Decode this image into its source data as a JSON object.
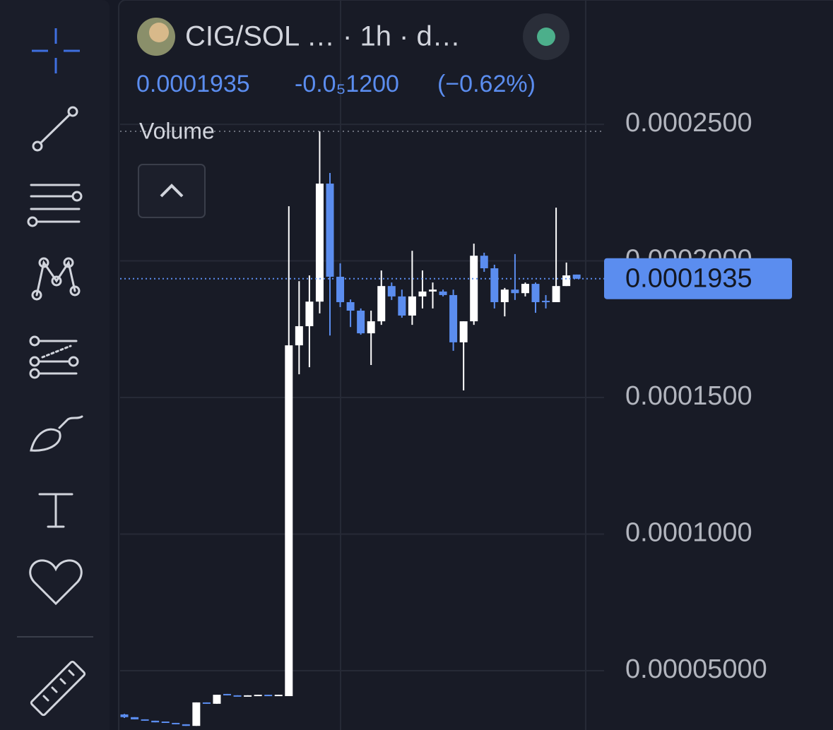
{
  "chart_data": {
    "type": "candlestick",
    "title": "CIG/SOL … · 1h · d…",
    "last_price": 0.0001935,
    "change": {
      "value": -1.2e-06,
      "label": "-0.0₅1200"
    },
    "change_percent": {
      "value": -0.62,
      "label": "(−0.62%)"
    },
    "indicator": "Volume",
    "up_color": "#ffffff",
    "down_color": "#5b8def",
    "open": [
      3.4e-05,
      3.3e-05,
      3.22e-05,
      3.17e-05,
      3.14e-05,
      3.09e-05,
      3.04e-05,
      2.98e-05,
      3.84e-05,
      3.79e-05,
      4.15e-05,
      4.1e-05,
      4.07e-05,
      4.1e-05,
      4.12e-05,
      4.07e-05,
      4.07e-05,
      0.0001691,
      0.0001761,
      0.0001851,
      0.0002283,
      0.0001942,
      0.0001849,
      0.0001818,
      0.0001735,
      0.0001779,
      0.0001908,
      0.000187,
      0.00018,
      0.000187,
      0.0001888,
      0.0001888,
      0.0001875,
      0.0001702,
      0.0001779,
      0.0002019,
      0.0001973,
      0.0001849,
      0.0001895,
      0.0001882,
      0.0001916,
      0.0001854,
      0.0001849,
      0.0001908,
      0.000195
    ],
    "high": [
      3.42e-05,
      3.3e-05,
      3.22e-05,
      3.17e-05,
      3.14e-05,
      3.09e-05,
      3.04e-05,
      3.84e-05,
      3.84e-05,
      4.12e-05,
      4.15e-05,
      4.1e-05,
      4.1e-05,
      4.12e-05,
      4.12e-05,
      4.12e-05,
      0.00022,
      0.0001926,
      0.0001947,
      0.0002474,
      0.0002322,
      0.0001991,
      0.0001859,
      0.0001826,
      0.0001818,
      0.0001965,
      0.0001921,
      0.0001895,
      0.0002037,
      0.0001965,
      0.0001921,
      0.0001895,
      0.0001895,
      0.0001779,
      0.0002063,
      0.000203,
      0.0001986,
      0.0001901,
      0.0002025,
      0.0001921,
      0.0001921,
      0.0001875,
      0.0002195,
      0.0001994,
      0.000195
    ],
    "low": [
      3.27e-05,
      3.22e-05,
      3.17e-05,
      3.11e-05,
      3.09e-05,
      3.04e-05,
      2.98e-05,
      2.98e-05,
      3.79e-05,
      3.79e-05,
      4.1e-05,
      4.07e-05,
      4.07e-05,
      4.1e-05,
      4.1e-05,
      4.07e-05,
      4.07e-05,
      0.0001585,
      0.0001611,
      0.0001808,
      0.0001727,
      0.0001831,
      0.0001758,
      0.000173,
      0.0001619,
      0.0001766,
      0.0001857,
      0.0001792,
      0.0001766,
      0.0001826,
      0.0001826,
      0.000187,
      0.0001671,
      0.0001526,
      0.0001766,
      0.000196,
      0.0001826,
      0.0001797,
      0.0001857,
      0.000187,
      0.000181,
      0.0001826,
      0.0001849,
      0.0001908,
      0.0001934
    ],
    "close": [
      3.3e-05,
      3.22e-05,
      3.17e-05,
      3.11e-05,
      3.09e-05,
      3.04e-05,
      2.98e-05,
      3.84e-05,
      3.79e-05,
      4.12e-05,
      4.1e-05,
      4.07e-05,
      4.1e-05,
      4.12e-05,
      4.1e-05,
      4.12e-05,
      0.0001691,
      0.0001761,
      0.0001851,
      0.0002283,
      0.0001942,
      0.0001849,
      0.0001818,
      0.0001735,
      0.0001779,
      0.0001908,
      0.000187,
      0.00018,
      0.000187,
      0.0001888,
      0.0001895,
      0.0001875,
      0.0001702,
      0.0001779,
      0.0002019,
      0.0001973,
      0.0001849,
      0.0001895,
      0.0001882,
      0.0001916,
      0.0001849,
      0.0001849,
      0.0001908,
      0.0001947,
      0.0001935
    ],
    "ylim": [
      2.83e-05,
      0.0002955
    ],
    "yticks": [
      {
        "value": 5e-05,
        "label": "0.00005000"
      },
      {
        "value": 0.0001,
        "label": "0.0001000"
      },
      {
        "value": 0.00015,
        "label": "0.0001500"
      },
      {
        "value": 0.0002,
        "label": "0.0002000"
      },
      {
        "value": 0.00025,
        "label": "0.0002500"
      }
    ],
    "grid": true
  }
}
